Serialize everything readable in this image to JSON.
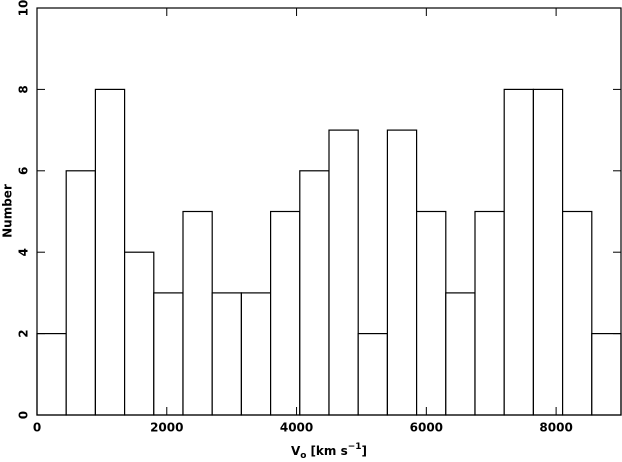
{
  "chart_data": {
    "type": "histogram",
    "xlabel": {
      "main": "V",
      "sub": "o",
      "unit": "[km s",
      "sup": "−1",
      "end": "]"
    },
    "ylabel": "Number",
    "bins": [
      0,
      450,
      900,
      1350,
      1800,
      2250,
      2700,
      3150,
      3600,
      4050,
      4500,
      4950,
      5400,
      5850,
      6300,
      6750,
      7200,
      7650,
      8100,
      8550,
      9000
    ],
    "values": [
      2,
      6,
      8,
      4,
      3,
      5,
      3,
      3,
      5,
      6,
      7,
      2,
      7,
      5,
      3,
      5,
      8,
      8,
      5,
      2
    ],
    "color": "#ffffff",
    "xlim": [
      0,
      9000
    ],
    "xticks": [
      0,
      2000,
      4000,
      6000,
      8000
    ],
    "ylim": [
      0,
      10
    ],
    "yticks": [
      0,
      2,
      4,
      6,
      8,
      10
    ]
  }
}
